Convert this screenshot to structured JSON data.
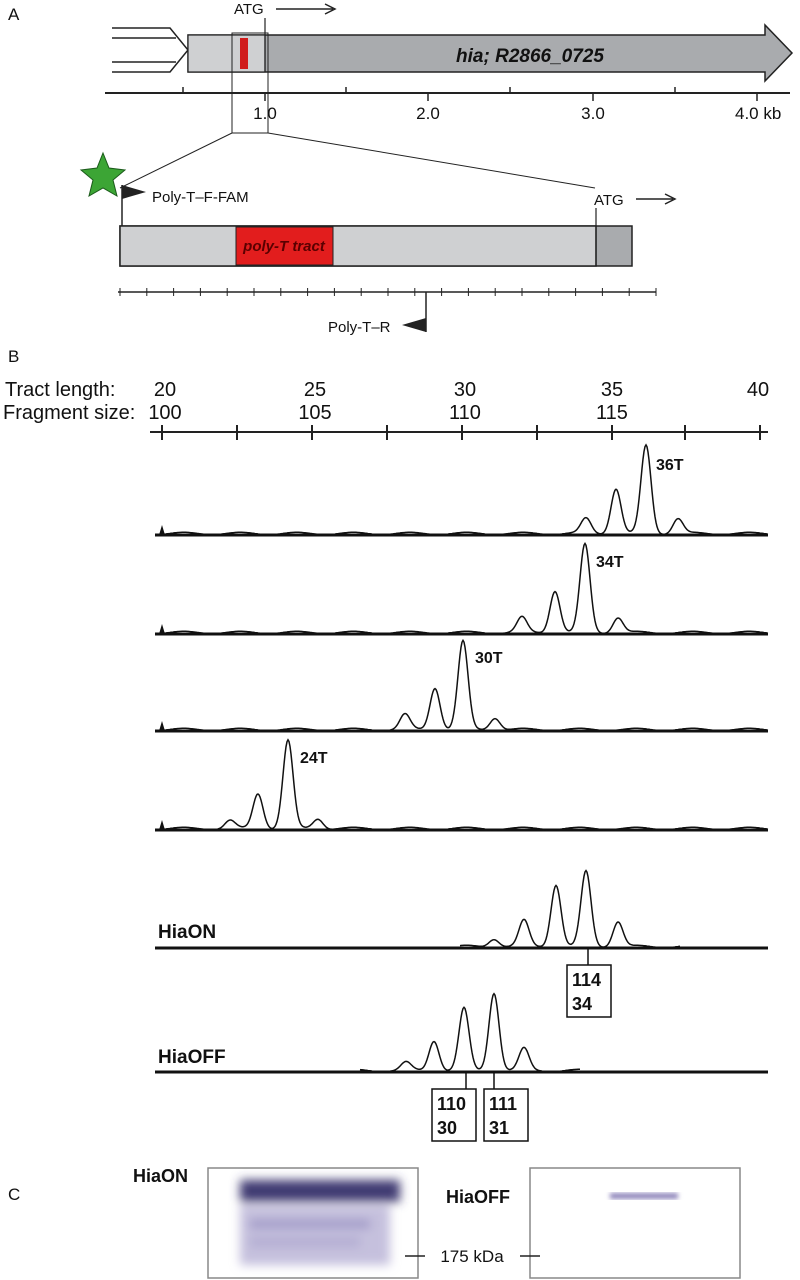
{
  "panels": {
    "a": "A",
    "b": "B",
    "c": "C"
  },
  "panel_a": {
    "atg_top": "ATG",
    "gene_label": "hia; R2866_0725",
    "scale_ticks": [
      "1.0",
      "2.0",
      "3.0",
      "4.0 kb"
    ],
    "primer_f": "Poly-T–F-FAM",
    "atg_zoom": "ATG",
    "tract_label": "poly-T tract",
    "primer_r": "Poly-T–R"
  },
  "panel_b": {
    "tract_length_label": "Tract length:",
    "fragment_size_label": "Fragment size:",
    "tract_ticks": [
      "20",
      "25",
      "30",
      "35",
      "40"
    ],
    "fragment_ticks": [
      "100",
      "105",
      "110",
      "115"
    ],
    "traces": [
      "36T",
      "34T",
      "30T",
      "24T",
      "HiaON",
      "HiaOFF"
    ],
    "boxes": [
      [
        "114",
        "34"
      ],
      [
        "110",
        "30"
      ],
      [
        "111",
        "31"
      ]
    ]
  },
  "panel_c": {
    "on_label": "HiaON",
    "off_label": "HiaOFF",
    "marker": "175 kDa"
  }
}
